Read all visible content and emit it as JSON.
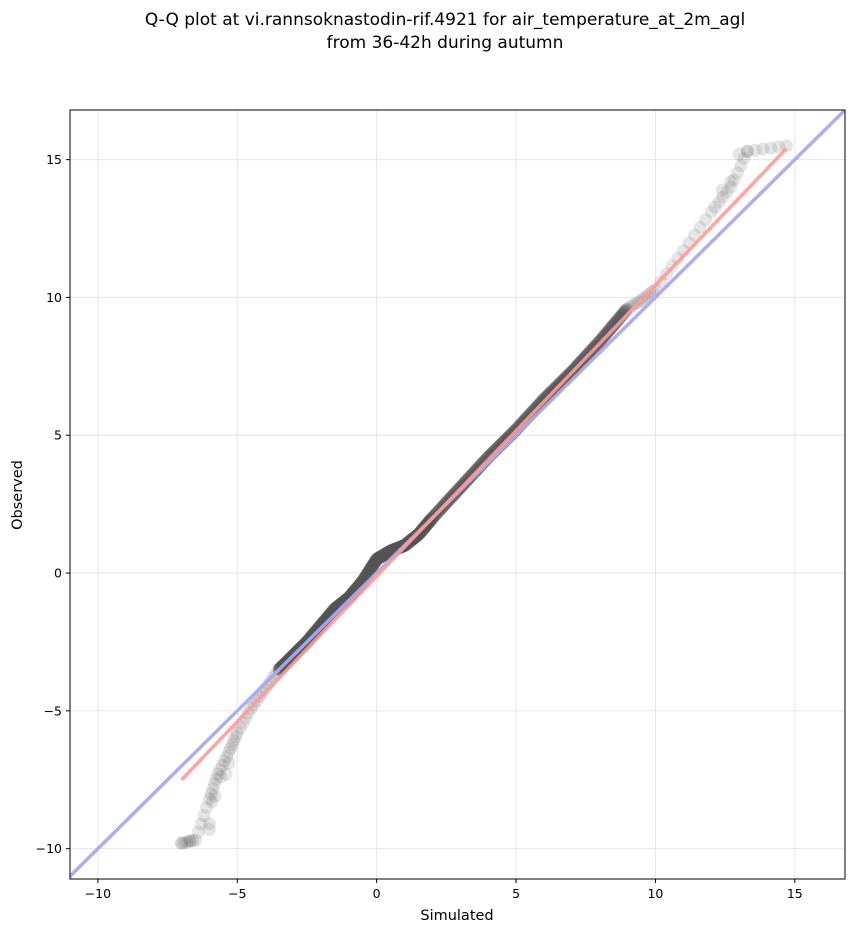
{
  "chart_data": {
    "type": "scatter",
    "title_line1": "Q-Q plot at vi.rannsoknastodin-rif.4921 for air_temperature_at_2m_agl",
    "title_line2": "from 36-42h during autumn",
    "xlabel": "Simulated",
    "ylabel": "Observed",
    "xlim": [
      -11.0,
      16.8
    ],
    "ylim": [
      -11.1,
      16.8
    ],
    "xticks": [
      -10,
      -5,
      0,
      5,
      10,
      15
    ],
    "yticks": [
      -10,
      -5,
      0,
      5,
      10,
      15
    ],
    "xtick_labels": [
      "−10",
      "−5",
      "0",
      "5",
      "10",
      "15"
    ],
    "ytick_labels": [
      "−10",
      "−5",
      "0",
      "5",
      "10",
      "15"
    ],
    "grid": true,
    "reference_line": {
      "slope": 1,
      "intercept": 0,
      "color": "#aaaaee"
    },
    "fit_line": {
      "x": [
        -7.0,
        14.7
      ],
      "y": [
        -7.5,
        15.4
      ],
      "color": "#ff9999"
    },
    "point_color": "#555555",
    "quantile_curve": {
      "x": [
        -7.0,
        -6.5,
        -6.0,
        -5.7,
        -5.3,
        -5.0,
        -4.5,
        -4.0,
        -3.5,
        -3.0,
        -2.5,
        -2.0,
        -1.5,
        -1.0,
        -0.5,
        0.0,
        0.5,
        1.0,
        1.5,
        2.0,
        3.0,
        4.0,
        5.0,
        6.0,
        7.0,
        8.0,
        9.0,
        9.5,
        10.0,
        11.0,
        12.0,
        12.7,
        13.3,
        14.7
      ],
      "y": [
        -9.8,
        -9.7,
        -8.2,
        -7.3,
        -6.5,
        -5.8,
        -4.9,
        -4.2,
        -3.5,
        -3.0,
        -2.5,
        -1.9,
        -1.3,
        -0.9,
        -0.3,
        0.5,
        0.8,
        1.0,
        1.4,
        2.0,
        3.1,
        4.2,
        5.2,
        6.3,
        7.3,
        8.4,
        9.6,
        9.9,
        10.3,
        11.7,
        13.1,
        14.0,
        15.3,
        15.5
      ]
    },
    "isolated_points": [
      {
        "x": -7.0,
        "y": -9.8
      },
      {
        "x": -6.7,
        "y": -9.7
      },
      {
        "x": -6.0,
        "y": -9.3
      },
      {
        "x": -6.0,
        "y": -9.1
      },
      {
        "x": -5.9,
        "y": -8.3
      },
      {
        "x": -5.8,
        "y": -8.1
      },
      {
        "x": -5.6,
        "y": -7.4
      },
      {
        "x": -5.4,
        "y": -7.3
      },
      {
        "x": -5.3,
        "y": -6.9
      },
      {
        "x": 12.4,
        "y": 13.9
      },
      {
        "x": 12.7,
        "y": 14.2
      },
      {
        "x": 13.0,
        "y": 15.2
      },
      {
        "x": 13.3,
        "y": 15.3
      },
      {
        "x": 14.7,
        "y": 15.5
      }
    ]
  }
}
